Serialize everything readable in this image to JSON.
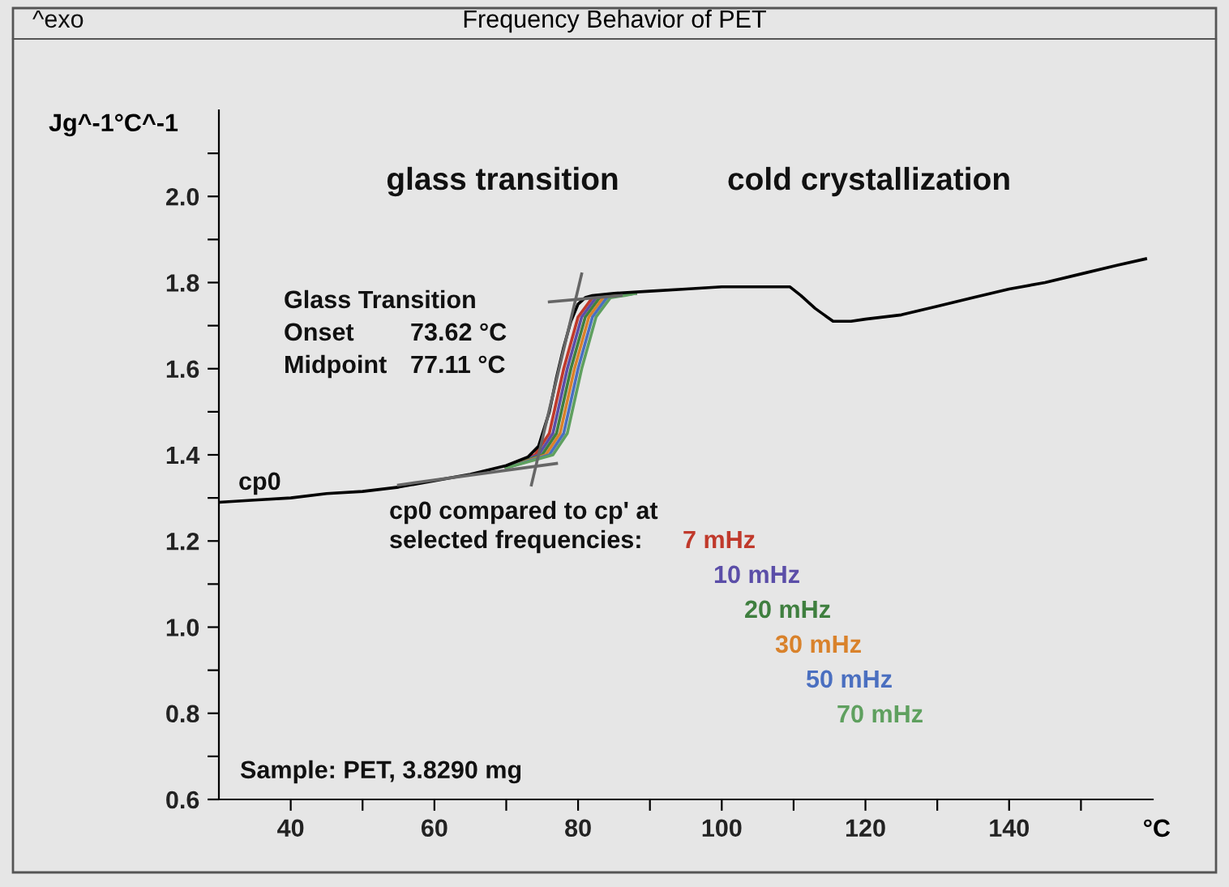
{
  "chart_data": {
    "type": "line",
    "title": "Frequency Behavior of PET",
    "ylabel": "Jg^-1°C^-1",
    "xlabel": "°C",
    "xlim": [
      30,
      160
    ],
    "ylim": [
      0.6,
      2.2
    ],
    "xticks": [
      40,
      {
        "value": 50,
        "label": null
      },
      60,
      {
        "value": 70,
        "label": null
      },
      80,
      {
        "value": 90,
        "label": null
      },
      100,
      {
        "value": 110,
        "label": null
      },
      120,
      {
        "value": 130,
        "label": null
      },
      140,
      {
        "value": 150,
        "label": null
      }
    ],
    "yticks": [
      0.6,
      {
        "value": 0.7,
        "label": null
      },
      0.8,
      {
        "value": 0.9,
        "label": null
      },
      {
        "value": 1.0,
        "label": "1.0"
      },
      {
        "value": 1.1,
        "label": null
      },
      1.2,
      {
        "value": 1.3,
        "label": null
      },
      1.4,
      {
        "value": 1.5,
        "label": null
      },
      1.6,
      {
        "value": 1.7,
        "label": null
      },
      1.8,
      {
        "value": 1.9,
        "label": null
      },
      {
        "value": 2.0,
        "label": "2.0"
      },
      {
        "value": 2.1,
        "label": null
      }
    ],
    "grid": false,
    "legend": "center",
    "series": [
      {
        "name": "7 mHz",
        "color": "#c0392b",
        "x": [
          70,
          74,
          76,
          78,
          80,
          82,
          84,
          88
        ],
        "values": [
          1.37,
          1.4,
          1.45,
          1.6,
          1.72,
          1.765,
          1.77,
          1.775
        ]
      },
      {
        "name": "10 mHz",
        "color": "#5b4ea8",
        "x": [
          70,
          74.5,
          76.5,
          78.5,
          80.5,
          82.5,
          84.5,
          88
        ],
        "values": [
          1.37,
          1.4,
          1.45,
          1.6,
          1.72,
          1.765,
          1.77,
          1.775
        ]
      },
      {
        "name": "20 mHz",
        "color": "#3f7f3f",
        "x": [
          70,
          75,
          77,
          79,
          81,
          83,
          85,
          88
        ],
        "values": [
          1.37,
          1.4,
          1.45,
          1.6,
          1.72,
          1.765,
          1.77,
          1.775
        ]
      },
      {
        "name": "30 mHz",
        "color": "#d9822b",
        "x": [
          70,
          75.5,
          77.5,
          79.5,
          81.5,
          83.5,
          85.5,
          88
        ],
        "values": [
          1.37,
          1.4,
          1.45,
          1.6,
          1.72,
          1.765,
          1.77,
          1.775
        ]
      },
      {
        "name": "50 mHz",
        "color": "#4a6fc0",
        "x": [
          70,
          76,
          78,
          80,
          82,
          84,
          86,
          88
        ],
        "values": [
          1.37,
          1.4,
          1.45,
          1.6,
          1.72,
          1.765,
          1.77,
          1.775
        ]
      },
      {
        "name": "70 mHz",
        "color": "#5fa05f",
        "x": [
          70,
          76.5,
          78.5,
          80.5,
          82.5,
          84.5,
          86.5,
          88
        ],
        "values": [
          1.37,
          1.4,
          1.45,
          1.6,
          1.72,
          1.765,
          1.77,
          1.775
        ]
      },
      {
        "color": "#000000",
        "x": [
          30,
          35,
          40,
          45,
          50,
          55,
          60,
          65,
          70,
          73,
          74.5,
          76,
          77,
          78,
          79,
          80,
          81,
          82,
          85,
          90,
          95,
          100,
          105,
          109.5,
          111,
          113,
          115.5,
          118,
          120,
          125,
          130,
          135,
          140,
          145,
          150,
          155,
          159
        ],
        "values": [
          1.29,
          1.295,
          1.3,
          1.31,
          1.315,
          1.325,
          1.34,
          1.355,
          1.375,
          1.395,
          1.42,
          1.5,
          1.58,
          1.65,
          1.71,
          1.75,
          1.765,
          1.77,
          1.775,
          1.78,
          1.785,
          1.79,
          1.79,
          1.79,
          1.77,
          1.74,
          1.71,
          1.71,
          1.715,
          1.725,
          1.745,
          1.765,
          1.785,
          1.8,
          1.82,
          1.84,
          1.855
        ]
      },
      {
        "color": "#666666",
        "x": [
          55,
          77
        ],
        "values": [
          1.33,
          1.38
        ]
      },
      {
        "color": "#666666",
        "x": [
          73.5,
          80.5
        ],
        "values": [
          1.33,
          1.82
        ]
      },
      {
        "color": "#666666",
        "x": [
          76,
          86
        ],
        "values": [
          1.755,
          1.77
        ]
      }
    ],
    "annotations": [
      "^exo",
      "glass transition",
      "cold crystallization",
      "Glass Transition",
      "Onset",
      "73.62 °C",
      "Midpoint",
      "77.11 °C",
      "cp0",
      "cp0 compared to cp' at",
      "selected frequencies:",
      "Sample: PET, 3.8290 mg"
    ]
  }
}
